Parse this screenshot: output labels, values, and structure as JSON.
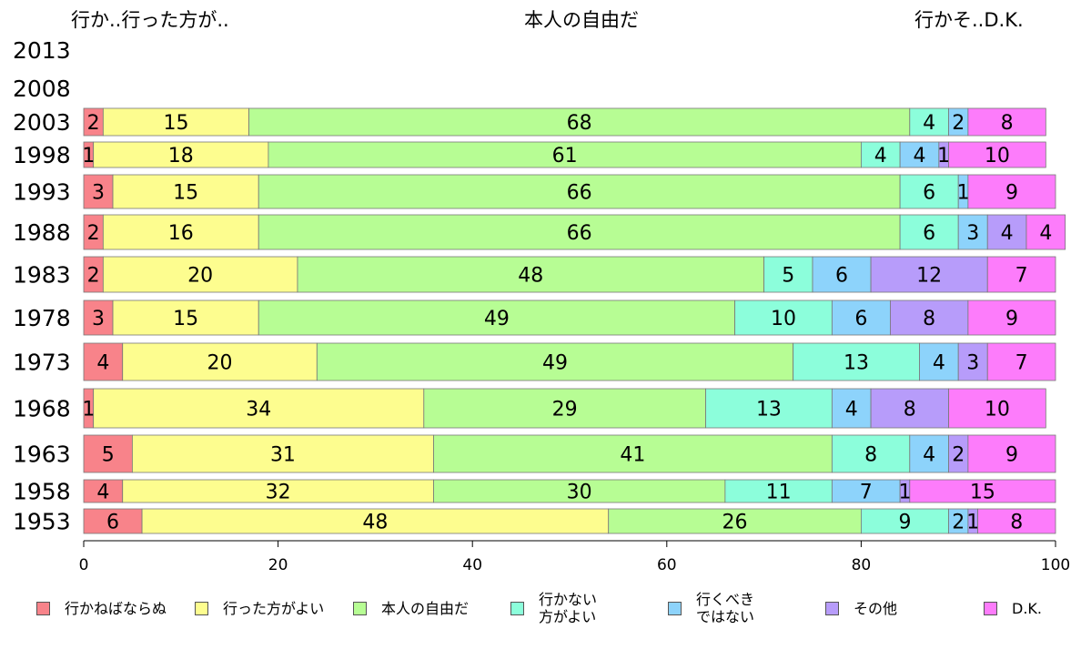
{
  "chart_data": {
    "type": "bar",
    "orientation": "horizontal",
    "stacked": true,
    "top_labels": [
      "行か..行った方が..",
      "本人の自由だ",
      "行かそ..D.K."
    ],
    "categories": [
      "2013",
      "2008",
      "2003",
      "1998",
      "1993",
      "1988",
      "1983",
      "1978",
      "1973",
      "1968",
      "1963",
      "1958",
      "1953"
    ],
    "series": [
      {
        "name": "行かねばならぬ",
        "color": "#f8838a",
        "values": [
          null,
          null,
          2,
          1,
          3,
          2,
          2,
          3,
          4,
          1,
          5,
          4,
          6
        ]
      },
      {
        "name": "行った方がよい",
        "color": "#fdfd8f",
        "values": [
          null,
          null,
          15,
          18,
          15,
          16,
          20,
          15,
          20,
          34,
          31,
          32,
          48
        ]
      },
      {
        "name": "本人の自由だ",
        "color": "#b7fd94",
        "values": [
          null,
          null,
          68,
          61,
          66,
          66,
          48,
          49,
          49,
          29,
          41,
          30,
          26
        ]
      },
      {
        "name": "行かない\n方がよい",
        "color": "#8cfedb",
        "values": [
          null,
          null,
          4,
          4,
          6,
          6,
          5,
          10,
          13,
          13,
          8,
          11,
          9
        ]
      },
      {
        "name": "行くべき\nではない",
        "color": "#8dd3fb",
        "values": [
          null,
          null,
          2,
          4,
          1,
          3,
          6,
          6,
          4,
          4,
          4,
          7,
          2
        ]
      },
      {
        "name": "その他",
        "color": "#b79cfa",
        "values": [
          null,
          null,
          0,
          1,
          0,
          4,
          12,
          8,
          3,
          8,
          2,
          1,
          1
        ]
      },
      {
        "name": "D.K.",
        "color": "#fd7cfb",
        "values": [
          null,
          null,
          8,
          10,
          9,
          4,
          7,
          9,
          7,
          10,
          9,
          15,
          8
        ]
      }
    ],
    "xlim": [
      0,
      100
    ],
    "xticks": [
      0,
      20,
      40,
      60,
      80,
      100
    ],
    "grid": false,
    "legend_position": "bottom"
  }
}
